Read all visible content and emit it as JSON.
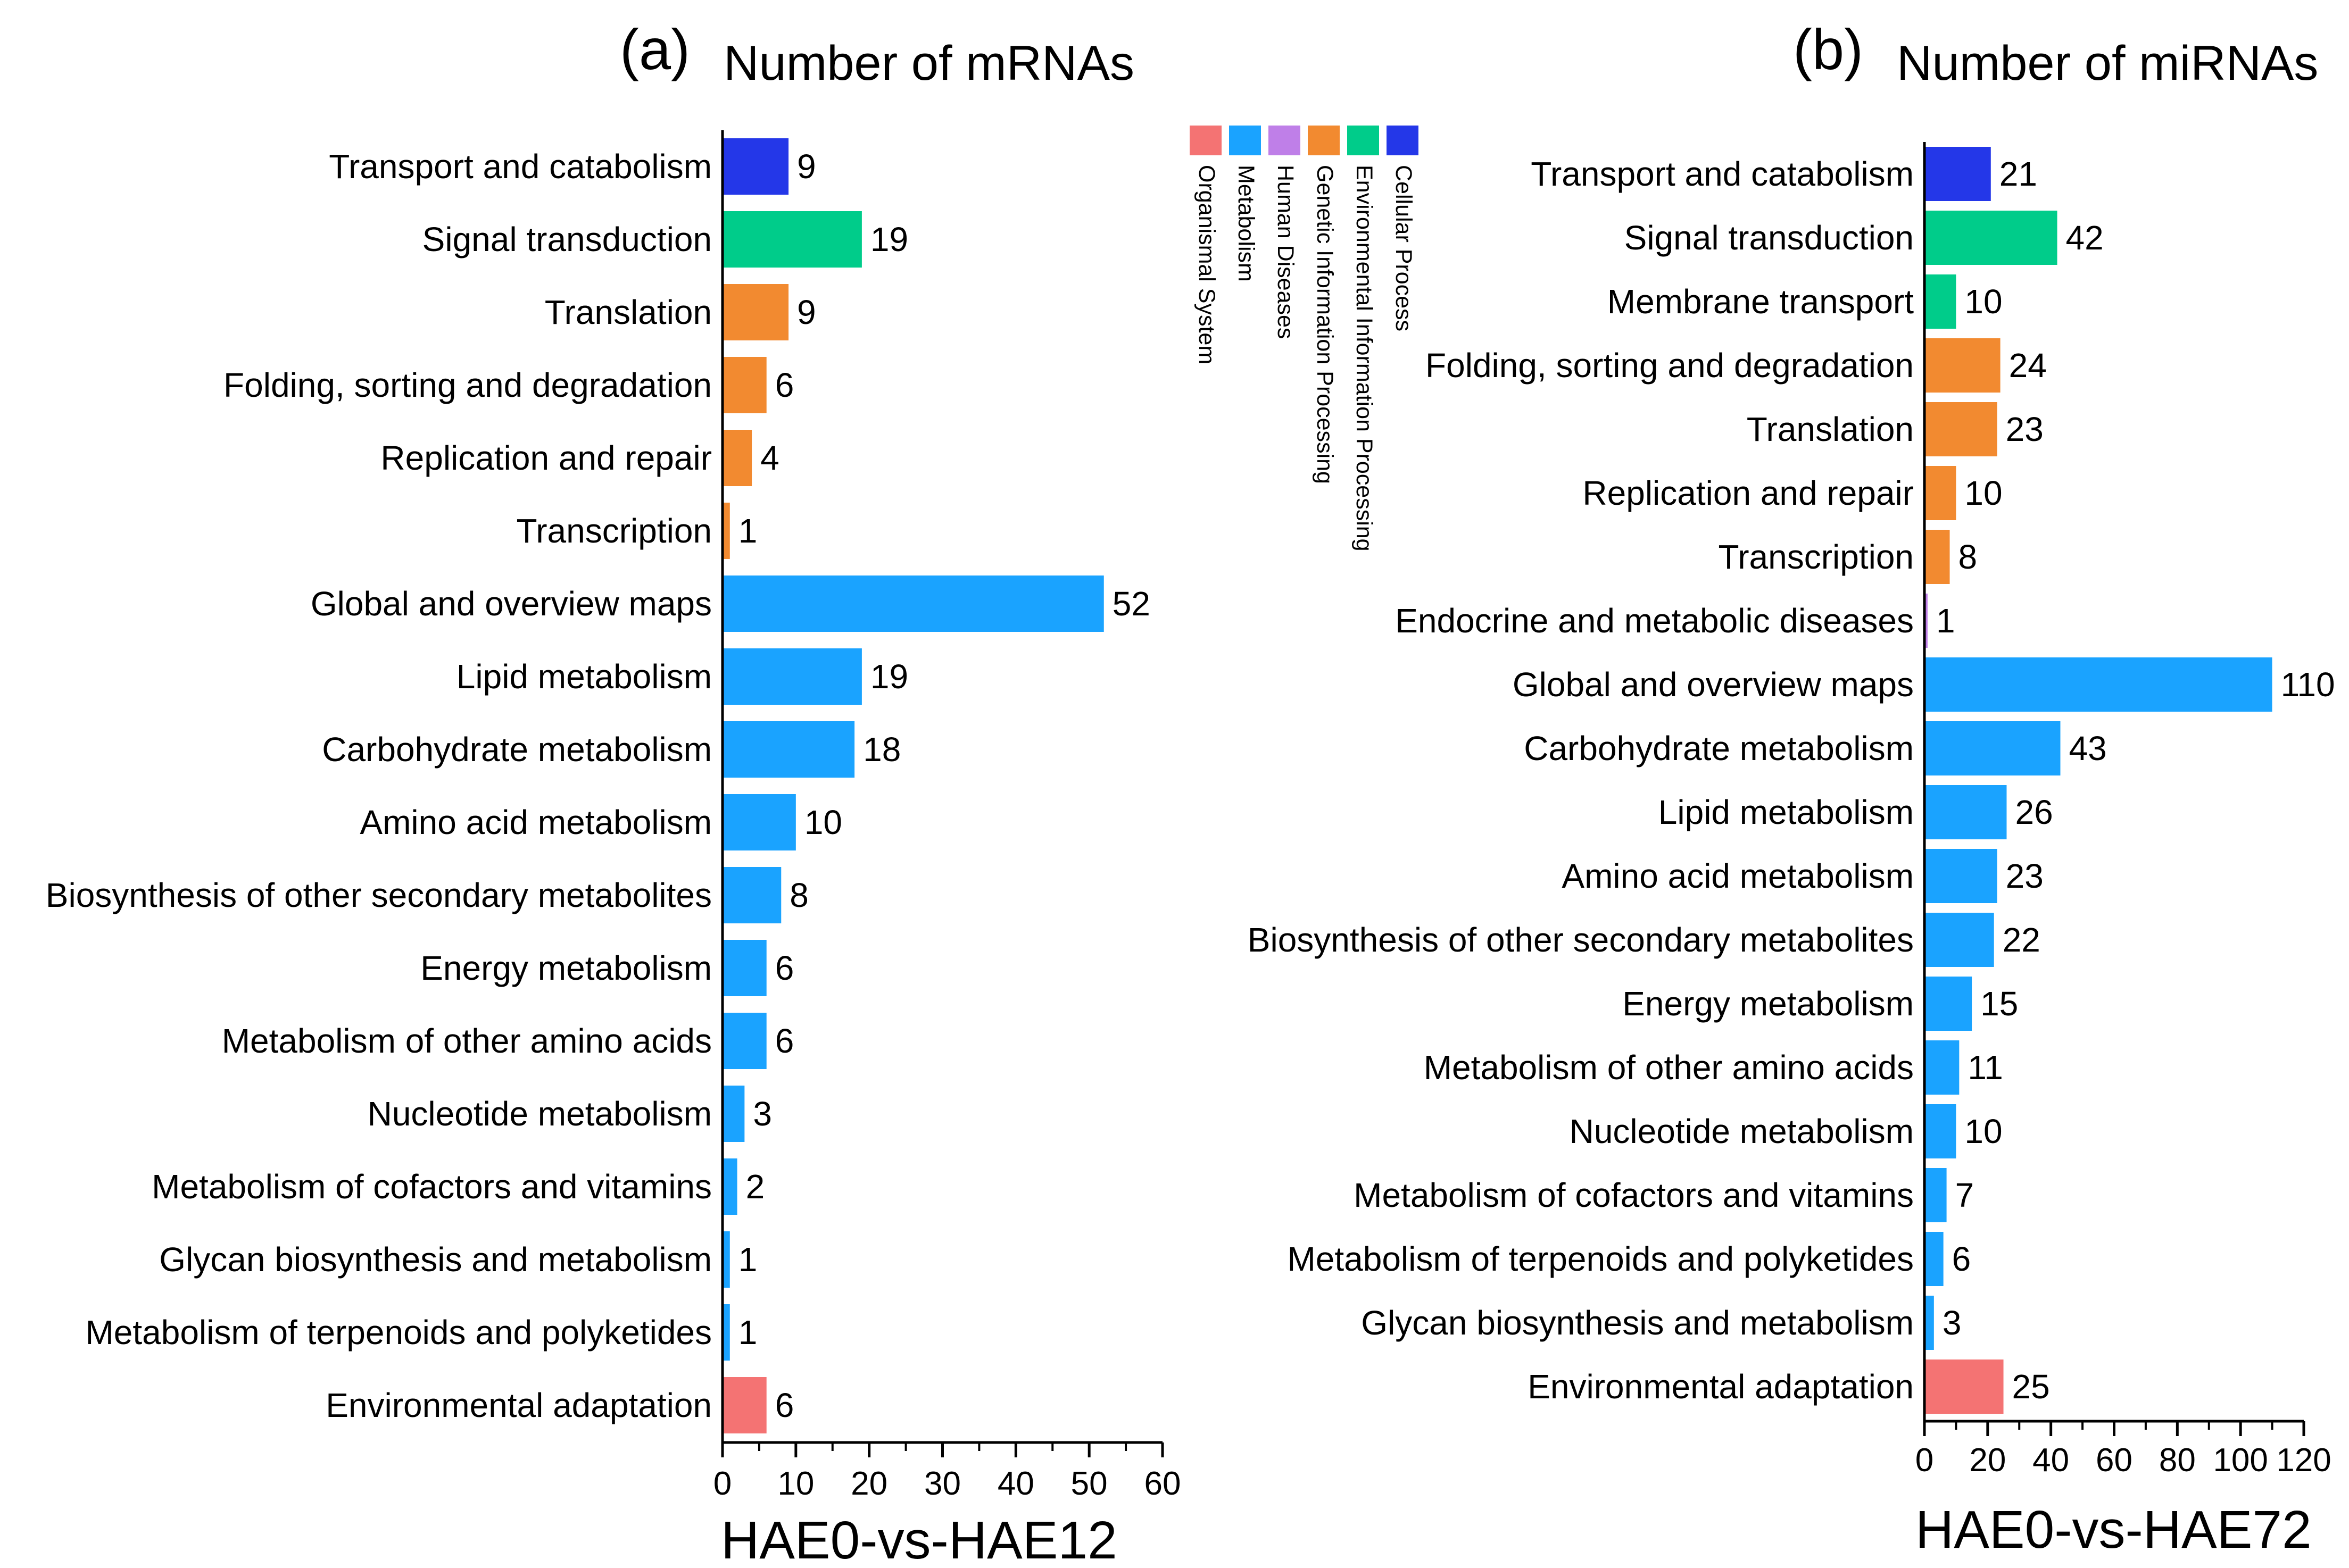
{
  "legend": {
    "items": [
      {
        "name": "Organismal System",
        "color": "#f47373"
      },
      {
        "name": "Metabolism",
        "color": "#1aa3ff"
      },
      {
        "name": "Human Diseases",
        "color": "#bf7fe8"
      },
      {
        "name": "Genetic Information Processing",
        "color": "#f28a30"
      },
      {
        "name": "Environmental Information Processing",
        "color": "#00cc8a"
      },
      {
        "name": "Cellular Process",
        "color": "#2437e8"
      }
    ]
  },
  "chart_data": [
    {
      "type": "bar",
      "orientation": "horizontal",
      "panel": "(a)",
      "title": "Number of mRNAs",
      "xlabel": "HAE0-vs-HAE12",
      "xlim": [
        0,
        60
      ],
      "xticks": [
        0,
        10,
        20,
        30,
        40,
        50,
        60
      ],
      "categories": [
        "Transport and catabolism",
        "Signal transduction",
        "Translation",
        "Folding, sorting and degradation",
        "Replication and repair",
        "Transcription",
        "Global and overview maps",
        "Lipid metabolism",
        "Carbohydrate metabolism",
        "Amino acid metabolism",
        "Biosynthesis of other secondary metabolites",
        "Energy metabolism",
        "Metabolism of other amino acids",
        "Nucleotide metabolism",
        "Metabolism of cofactors and vitamins",
        "Glycan biosynthesis and metabolism",
        "Metabolism of terpenoids and polyketides",
        "Environmental adaptation"
      ],
      "values": [
        9,
        19,
        9,
        6,
        4,
        1,
        52,
        19,
        18,
        10,
        8,
        6,
        6,
        3,
        2,
        1,
        1,
        6
      ],
      "groups": [
        "Cellular Process",
        "Environmental Information Processing",
        "Genetic Information Processing",
        "Genetic Information Processing",
        "Genetic Information Processing",
        "Genetic Information Processing",
        "Metabolism",
        "Metabolism",
        "Metabolism",
        "Metabolism",
        "Metabolism",
        "Metabolism",
        "Metabolism",
        "Metabolism",
        "Metabolism",
        "Metabolism",
        "Metabolism",
        "Organismal System"
      ]
    },
    {
      "type": "bar",
      "orientation": "horizontal",
      "panel": "(b)",
      "title": "Number of miRNAs",
      "xlabel": "HAE0-vs-HAE72",
      "xlim": [
        0,
        120
      ],
      "xticks": [
        0,
        20,
        40,
        60,
        80,
        100,
        120
      ],
      "categories": [
        "Transport and catabolism",
        "Signal transduction",
        "Membrane transport",
        "Folding, sorting and degradation",
        "Translation",
        "Replication and repair",
        "Transcription",
        "Endocrine and metabolic diseases",
        "Global and overview maps",
        "Carbohydrate metabolism",
        "Lipid metabolism",
        "Amino acid metabolism",
        "Biosynthesis of other secondary metabolites",
        "Energy metabolism",
        "Metabolism of other amino acids",
        "Nucleotide metabolism",
        "Metabolism of cofactors and vitamins",
        "Metabolism of terpenoids and polyketides",
        "Glycan biosynthesis and metabolism",
        "Environmental adaptation"
      ],
      "values": [
        21,
        42,
        10,
        24,
        23,
        10,
        8,
        1,
        110,
        43,
        26,
        23,
        22,
        15,
        11,
        10,
        7,
        6,
        3,
        25
      ],
      "groups": [
        "Cellular Process",
        "Environmental Information Processing",
        "Environmental Information Processing",
        "Genetic Information Processing",
        "Genetic Information Processing",
        "Genetic Information Processing",
        "Genetic Information Processing",
        "Human Diseases",
        "Metabolism",
        "Metabolism",
        "Metabolism",
        "Metabolism",
        "Metabolism",
        "Metabolism",
        "Metabolism",
        "Metabolism",
        "Metabolism",
        "Metabolism",
        "Metabolism",
        "Organismal System"
      ]
    }
  ]
}
